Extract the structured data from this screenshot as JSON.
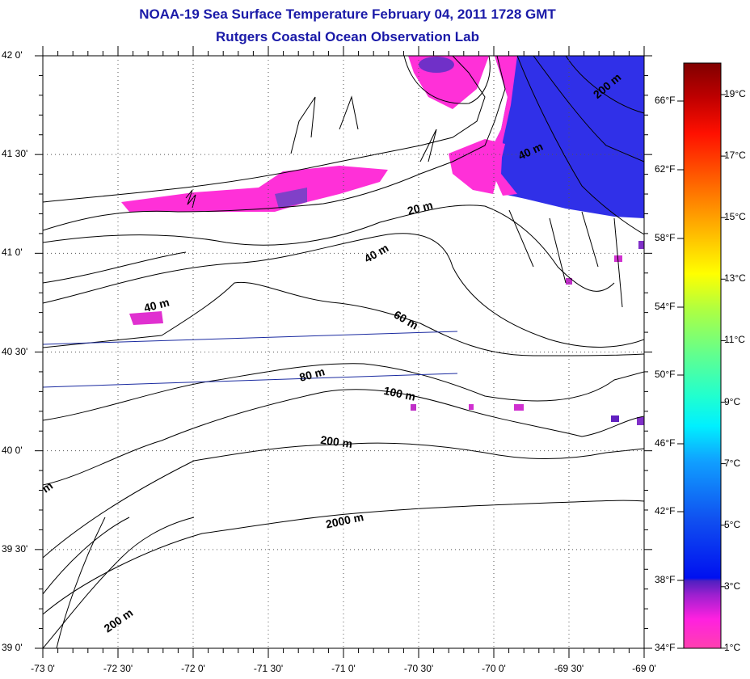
{
  "title": "NOAA-19 Sea Surface Temperature February 04, 2011 1728 GMT",
  "subtitle": "Rutgers Coastal Ocean Observation Lab",
  "lat_labels": [
    "42 0'",
    "41 30'",
    "41 0'",
    "40 30'",
    "40 0'",
    "39 30'",
    "39 0'"
  ],
  "lon_labels": [
    "-73 0'",
    "-72 30'",
    "-72 0'",
    "-71 30'",
    "-71 0'",
    "-70 30'",
    "-70 0'",
    "-69 30'",
    "-69 0'"
  ],
  "colorbar": {
    "fahrenheit_labels": [
      "66°F",
      "62°F",
      "58°F",
      "54°F",
      "50°F",
      "46°F",
      "42°F",
      "38°F",
      "34°F"
    ],
    "celsius_labels": [
      "19°C",
      "17°C",
      "15°C",
      "13°C",
      "11°C",
      "9°C",
      "7°C",
      "5°C",
      "3°C",
      "1°C"
    ],
    "range_c": [
      1,
      20
    ]
  },
  "contour_labels": [
    "200 m",
    "40 m",
    "20 m",
    "40 m",
    "40 m",
    "60 m",
    "80 m",
    "100 m",
    "200 m",
    "2000 m",
    "200 m",
    "m"
  ],
  "colors": {
    "title": "#1a1aa8",
    "track": "#1a2aa0"
  }
}
